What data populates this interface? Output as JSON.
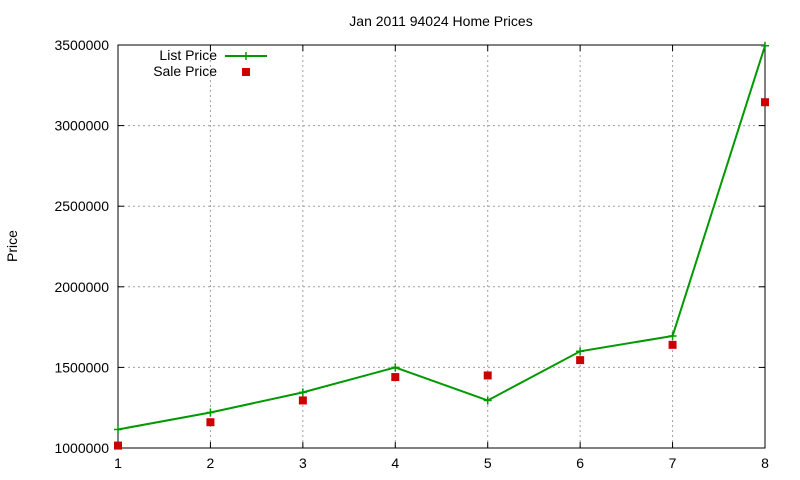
{
  "chart_data": {
    "type": "line",
    "title": "Jan 2011 94024 Home Prices",
    "xlabel": "",
    "ylabel": "Price",
    "x": [
      1,
      2,
      3,
      4,
      5,
      6,
      7,
      8
    ],
    "xlim": [
      1,
      8
    ],
    "ylim": [
      1000000,
      3500000
    ],
    "xticks": [
      "1",
      "2",
      "3",
      "4",
      "5",
      "6",
      "7",
      "8"
    ],
    "yticks": [
      "1000000",
      "1500000",
      "2000000",
      "2500000",
      "3000000",
      "3500000"
    ],
    "grid": true,
    "legend_position": "top-left",
    "series": [
      {
        "name": "List Price",
        "style": "line-with-plus-markers",
        "color": "#009900",
        "values": [
          1115000,
          1220000,
          1345000,
          1500000,
          1295000,
          1600000,
          1695000,
          3495000
        ]
      },
      {
        "name": "Sale Price",
        "style": "square-markers",
        "color": "#cc0000",
        "values": [
          1015000,
          1160000,
          1295000,
          1440000,
          1450000,
          1545000,
          1640000,
          3145000
        ]
      }
    ]
  }
}
